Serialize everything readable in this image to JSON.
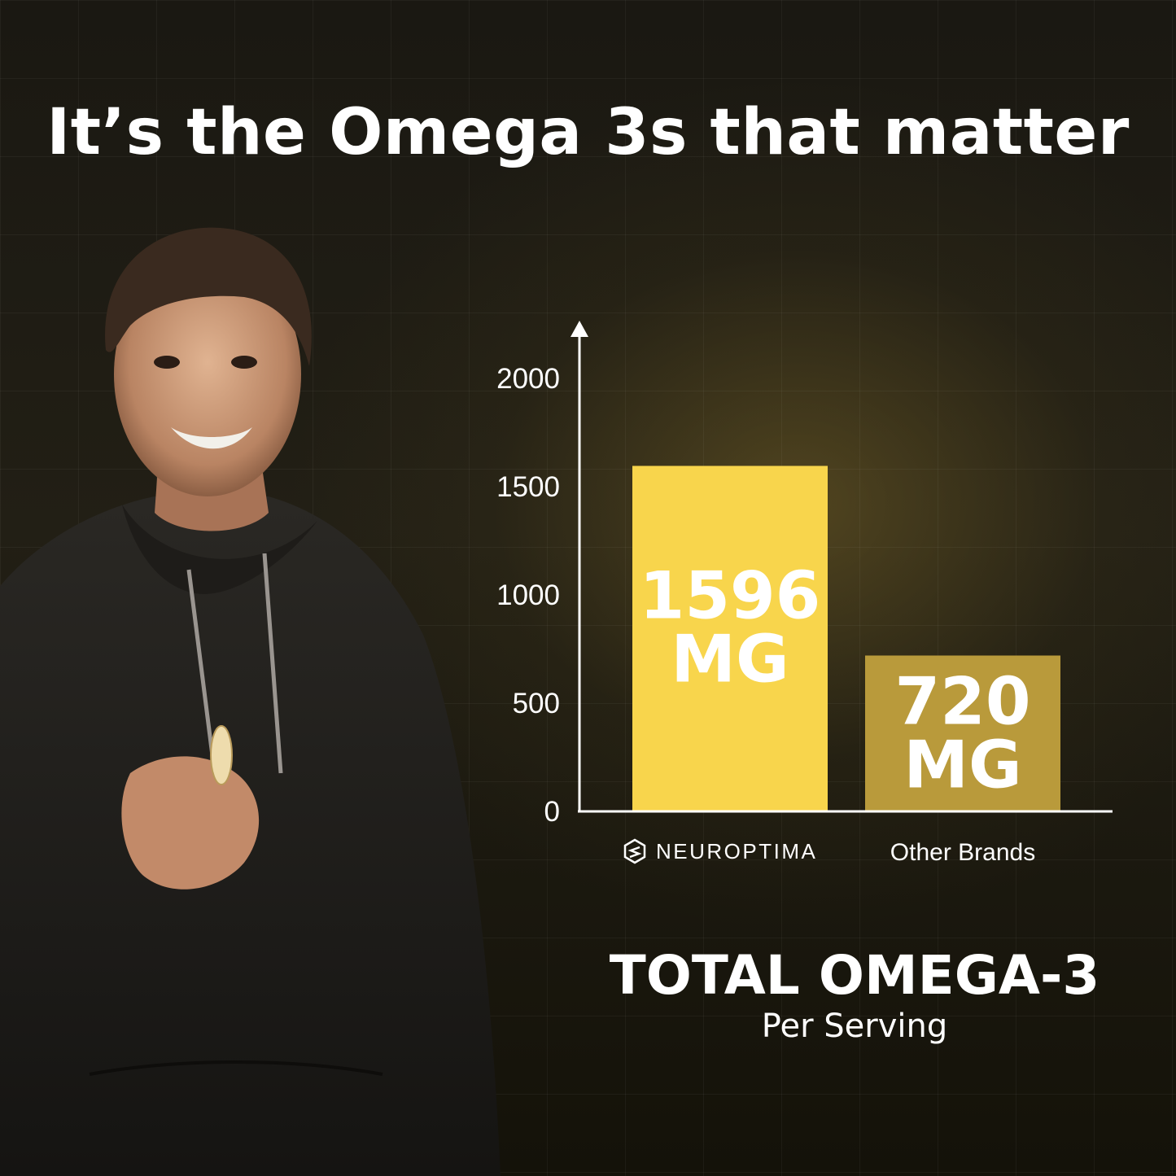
{
  "headline": "It’s the Omega 3s that matter",
  "chart_data": {
    "type": "bar",
    "categories": [
      "NEUROPTIMA",
      "Other Brands"
    ],
    "values": [
      1596,
      720
    ],
    "bar_labels": [
      {
        "value": "1596",
        "unit": "MG"
      },
      {
        "value": "720",
        "unit": "MG"
      }
    ],
    "yticks": [
      0,
      500,
      1000,
      1500,
      2000
    ],
    "ylim": [
      0,
      2000
    ],
    "grid": false,
    "bar_colors": [
      "#f8d54c",
      "#b99a3b"
    ],
    "axis_color": "#ffffff"
  },
  "caption": {
    "title": "TOTAL OMEGA-3",
    "subtitle": "Per Serving"
  },
  "brand": {
    "logo_icon": "hexagon-s-logo-icon"
  }
}
